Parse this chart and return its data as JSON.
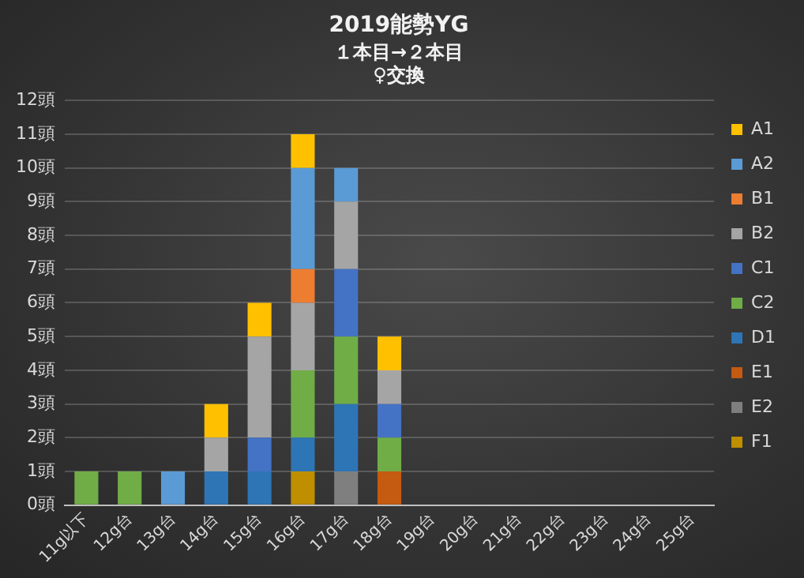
{
  "chart_data": {
    "type": "bar",
    "stacked": true,
    "title": "2019能勢YG",
    "subtitle": "１本目→２本目\n♀交換",
    "categories": [
      "11g以下",
      "12g台",
      "13g台",
      "14g台",
      "15g台",
      "16g台",
      "17g台",
      "18g台",
      "19g台",
      "20g台",
      "21g台",
      "22g台",
      "23g台",
      "24g台",
      "25g台"
    ],
    "series": [
      {
        "name": "F1",
        "color": "#bf8f00",
        "values": [
          0,
          0,
          0,
          0,
          0,
          1,
          0,
          0,
          0,
          0,
          0,
          0,
          0,
          0,
          0
        ]
      },
      {
        "name": "E2",
        "color": "#7f7f7f",
        "values": [
          0,
          0,
          0,
          0,
          0,
          0,
          1,
          0,
          0,
          0,
          0,
          0,
          0,
          0,
          0
        ]
      },
      {
        "name": "E1",
        "color": "#c55a11",
        "values": [
          0,
          0,
          0,
          0,
          0,
          0,
          0,
          1,
          0,
          0,
          0,
          0,
          0,
          0,
          0
        ]
      },
      {
        "name": "D1",
        "color": "#2e75b6",
        "values": [
          0,
          0,
          0,
          1,
          1,
          1,
          2,
          0,
          0,
          0,
          0,
          0,
          0,
          0,
          0
        ]
      },
      {
        "name": "C2",
        "color": "#70ad47",
        "values": [
          1,
          1,
          0,
          0,
          0,
          2,
          2,
          1,
          0,
          0,
          0,
          0,
          0,
          0,
          0
        ]
      },
      {
        "name": "C1",
        "color": "#4472c4",
        "values": [
          0,
          0,
          0,
          0,
          1,
          0,
          2,
          1,
          0,
          0,
          0,
          0,
          0,
          0,
          0
        ]
      },
      {
        "name": "B2",
        "color": "#a5a5a5",
        "values": [
          0,
          0,
          0,
          1,
          3,
          2,
          2,
          1,
          0,
          0,
          0,
          0,
          0,
          0,
          0
        ]
      },
      {
        "name": "B1",
        "color": "#ed7d31",
        "values": [
          0,
          0,
          0,
          0,
          0,
          1,
          0,
          0,
          0,
          0,
          0,
          0,
          0,
          0,
          0
        ]
      },
      {
        "name": "A2",
        "color": "#5b9bd5",
        "values": [
          0,
          0,
          1,
          0,
          0,
          3,
          1,
          0,
          0,
          0,
          0,
          0,
          0,
          0,
          0
        ]
      },
      {
        "name": "A1",
        "color": "#ffc000",
        "values": [
          0,
          0,
          0,
          1,
          1,
          1,
          0,
          1,
          0,
          0,
          0,
          0,
          0,
          0,
          0
        ]
      }
    ],
    "ylim": [
      0,
      12
    ],
    "yticks": [
      {
        "value": 0,
        "label": "0頭"
      },
      {
        "value": 1,
        "label": "1頭"
      },
      {
        "value": 2,
        "label": "2頭"
      },
      {
        "value": 3,
        "label": "3頭"
      },
      {
        "value": 4,
        "label": "4頭"
      },
      {
        "value": 5,
        "label": "5頭"
      },
      {
        "value": 6,
        "label": "6頭"
      },
      {
        "value": 7,
        "label": "7頭"
      },
      {
        "value": 8,
        "label": "8頭"
      },
      {
        "value": 9,
        "label": "9頭"
      },
      {
        "value": 10,
        "label": "10頭"
      },
      {
        "value": 11,
        "label": "11頭"
      },
      {
        "value": 12,
        "label": "12頭"
      }
    ],
    "grid": "y",
    "legend": "right"
  }
}
